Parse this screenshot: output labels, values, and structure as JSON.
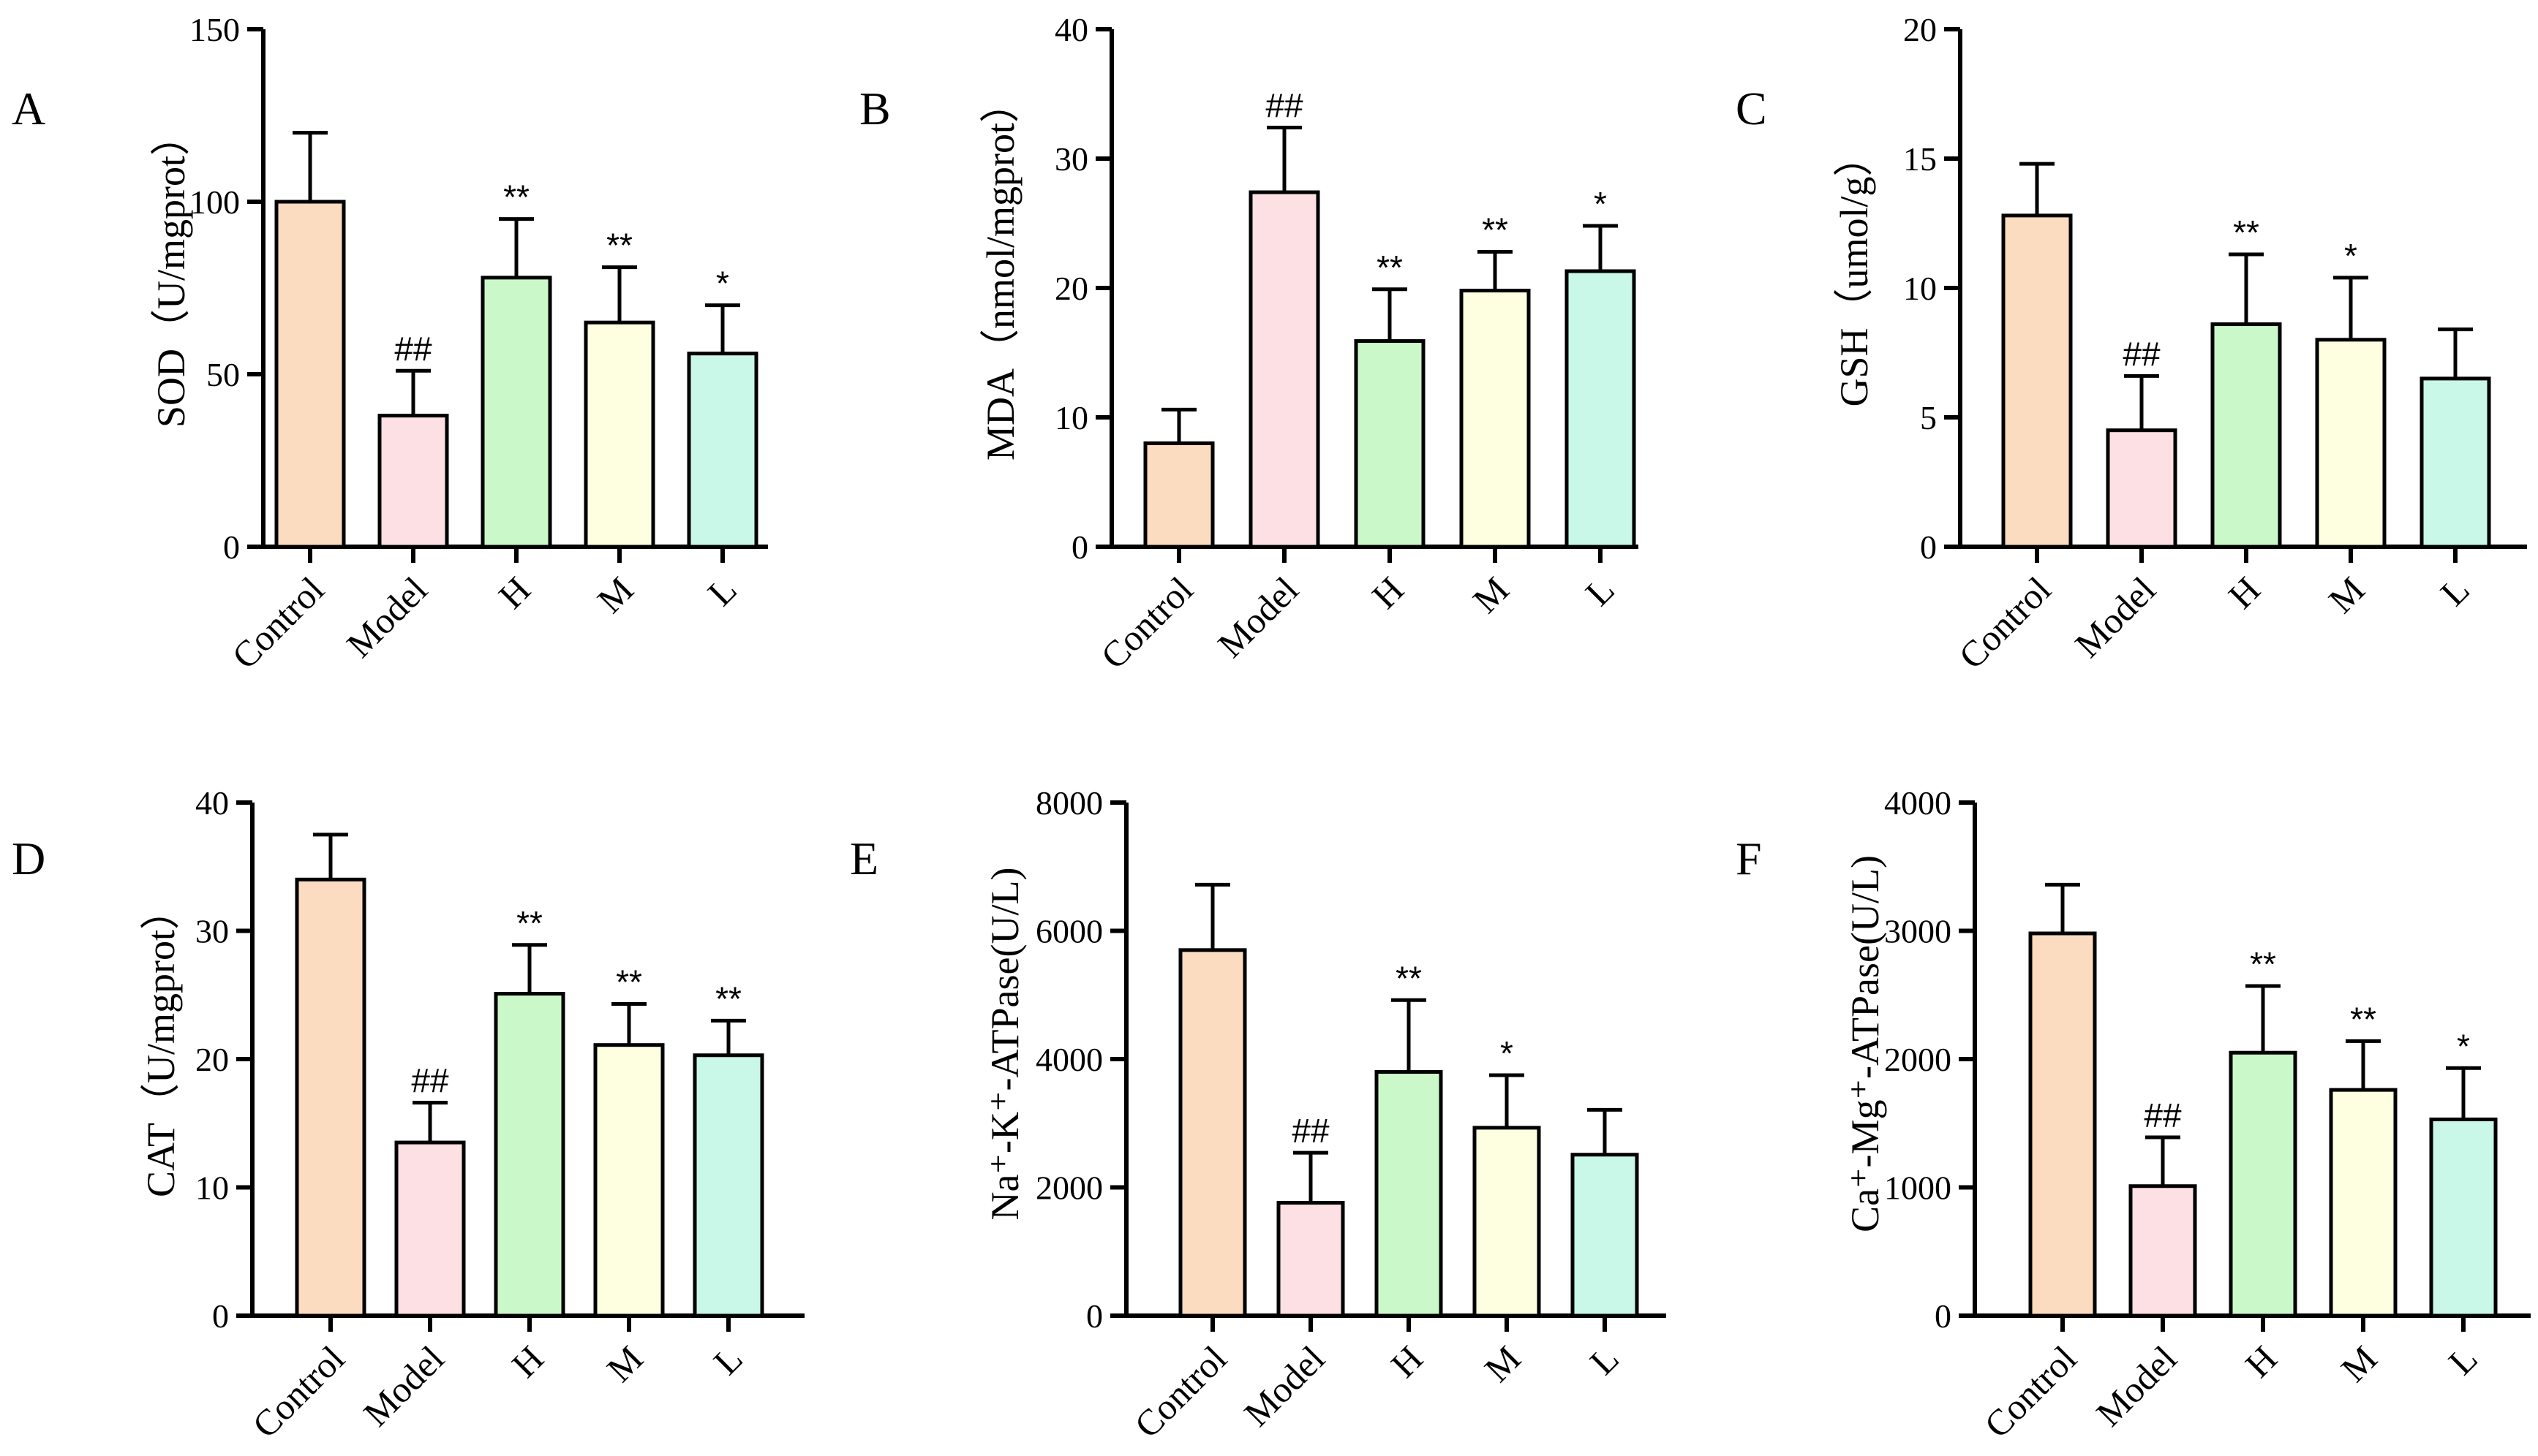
{
  "figure": {
    "colors": {
      "Control": "#fcdcc0",
      "Model": "#fde0e3",
      "H": "#cbf8c8",
      "M": "#fefee0",
      "L": "#c9f7e8"
    }
  },
  "chart_data": [
    {
      "type": "bar",
      "panel": "A",
      "title": "",
      "xlabel": "",
      "ylabel": "SOD（U/mgprot）",
      "categories": [
        "Control",
        "Model",
        "H",
        "M",
        "L"
      ],
      "values": [
        100,
        38,
        78,
        65,
        56
      ],
      "errors": [
        20,
        13,
        17,
        16,
        14
      ],
      "significance": [
        "",
        "##",
        "**",
        "**",
        "*"
      ],
      "ylim": [
        0,
        150
      ],
      "yticks": [
        0,
        50,
        100,
        150
      ],
      "ytick_labels": [
        "0",
        "50",
        "100",
        "150"
      ]
    },
    {
      "type": "bar",
      "panel": "B",
      "title": "",
      "xlabel": "",
      "ylabel": "MDA（nmol/mgprot）",
      "categories": [
        "Control",
        "Model",
        "H",
        "M",
        "L"
      ],
      "values": [
        8,
        27.4,
        15.9,
        19.8,
        21.3
      ],
      "errors": [
        2.6,
        5,
        4,
        3,
        3.5
      ],
      "significance": [
        "",
        "##",
        "**",
        "**",
        "*"
      ],
      "ylim": [
        0,
        40
      ],
      "yticks": [
        0,
        10,
        20,
        30,
        40
      ],
      "ytick_labels": [
        "0",
        "10",
        "20",
        "30",
        "40"
      ]
    },
    {
      "type": "bar",
      "panel": "C",
      "title": "",
      "xlabel": "",
      "ylabel": "GSH（umol/g）",
      "categories": [
        "Control",
        "Model",
        "H",
        "M",
        "L"
      ],
      "values": [
        12.8,
        4.5,
        8.6,
        8,
        6.5
      ],
      "errors": [
        2,
        2.1,
        2.7,
        2.4,
        1.9
      ],
      "significance": [
        "",
        "##",
        "**",
        "*",
        ""
      ],
      "ylim": [
        0,
        20
      ],
      "yticks": [
        0,
        5,
        10,
        15,
        20
      ],
      "ytick_labels": [
        "0",
        "5",
        "10",
        "15",
        "20"
      ]
    },
    {
      "type": "bar",
      "panel": "D",
      "title": "",
      "xlabel": "",
      "ylabel": "CAT（U/mgprot）",
      "categories": [
        "Control",
        "Model",
        "H",
        "M",
        "L"
      ],
      "values": [
        34,
        13.5,
        25.1,
        21.1,
        20.3
      ],
      "errors": [
        3.5,
        3.1,
        3.8,
        3.2,
        2.7
      ],
      "significance": [
        "",
        "##",
        "**",
        "**",
        "**"
      ],
      "ylim": [
        0,
        40
      ],
      "yticks": [
        0,
        10,
        20,
        30,
        40
      ],
      "ytick_labels": [
        "0",
        "10",
        "20",
        "30",
        "40"
      ]
    },
    {
      "type": "bar",
      "panel": "E",
      "title": "",
      "xlabel": "",
      "ylabel": "Na⁺-K⁺-ATPase(U/L)",
      "categories": [
        "Control",
        "Model",
        "H",
        "M",
        "L"
      ],
      "values": [
        5700,
        1760,
        3800,
        2930,
        2510
      ],
      "errors": [
        1020,
        780,
        1120,
        820,
        700
      ],
      "significance": [
        "",
        "##",
        "**",
        "*",
        ""
      ],
      "ylim": [
        0,
        8000
      ],
      "yticks": [
        0,
        2000,
        4000,
        6000,
        8000
      ],
      "ytick_labels": [
        "0",
        "2000",
        "4000",
        "6000",
        "8000"
      ]
    },
    {
      "type": "bar",
      "panel": "F",
      "title": "",
      "xlabel": "",
      "ylabel": "Ca⁺-Mg⁺-ATPase(U/L)",
      "categories": [
        "Control",
        "Model",
        "H",
        "M",
        "L"
      ],
      "values": [
        2980,
        1010,
        2050,
        1760,
        1530
      ],
      "errors": [
        380,
        380,
        520,
        380,
        400
      ],
      "significance": [
        "",
        "##",
        "**",
        "**",
        "*"
      ],
      "ylim": [
        0,
        4000
      ],
      "yticks": [
        0,
        1000,
        2000,
        3000,
        4000
      ],
      "ytick_labels": [
        "0",
        "1000",
        "2000",
        "3000",
        "4000"
      ]
    }
  ]
}
